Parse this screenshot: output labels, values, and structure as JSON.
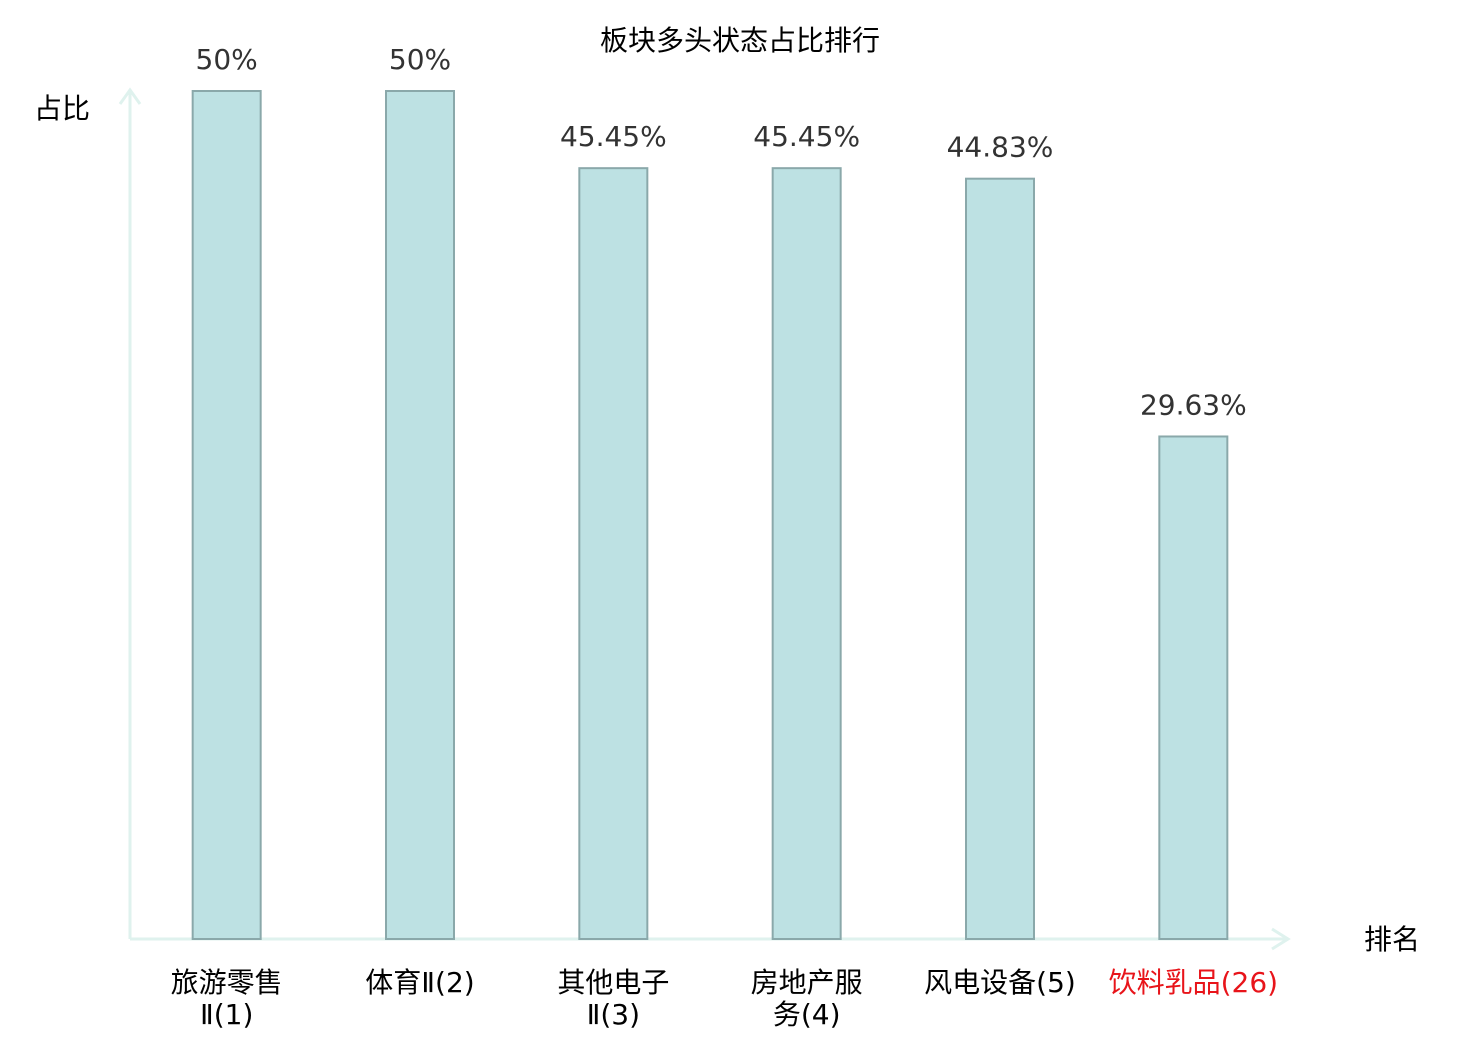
{
  "chart_data": {
    "type": "bar",
    "title": "板块多头状态占比排行",
    "y_label": "占比",
    "x_label": "排名",
    "categories": [
      [
        "旅游零售",
        "Ⅱ(1)"
      ],
      [
        "体育Ⅱ(2)"
      ],
      [
        "其他电子",
        "Ⅱ(3)"
      ],
      [
        "房地产服",
        "务(4)"
      ],
      [
        "风电设备(5)"
      ],
      [
        "饮料乳品(26)"
      ]
    ],
    "label_colors": [
      "#000000",
      "#000000",
      "#000000",
      "#000000",
      "#000000",
      "#e8141a"
    ],
    "values": [
      50,
      50,
      45.45,
      45.45,
      44.83,
      29.63
    ],
    "value_labels": [
      "50%",
      "50%",
      "45.45%",
      "45.45%",
      "44.83%",
      "29.63%"
    ],
    "color": "#bde1e3",
    "edge_color": "#8aa8aa",
    "ylim": [
      0,
      50
    ]
  }
}
